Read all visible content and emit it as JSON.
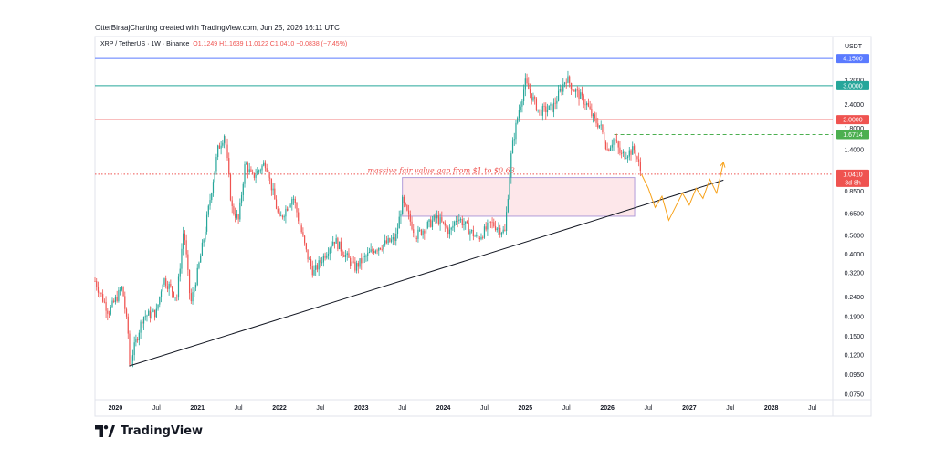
{
  "header": {
    "text": "OtterBiraajCharting created with TradingView.com, Jun 25, 2026 16:11 UTC"
  },
  "symbol": {
    "name": "XRP / TetherUS · 1W · Binance",
    "open": "O1.1249",
    "high": "H1.1639",
    "low": "L1.0122",
    "close": "C1.0410",
    "change": "−0.0838 (−7.45%)"
  },
  "currency": "USDT",
  "brand": {
    "name": "TradingView"
  },
  "colors": {
    "up": "#26a69a",
    "down": "#ef5350",
    "blue": "#5b7bff",
    "teal": "#26a69a",
    "red": "#ef5350",
    "green": "#4caf50",
    "trend": "#131722",
    "projection": "#f7a21b",
    "fvg_fill": "#fde7ea",
    "fvg_border": "#b19cd9"
  },
  "chart_data": {
    "type": "candlestick",
    "y_scale": "log",
    "ylim": [
      0.07,
      5.0
    ],
    "x_tick_labels": [
      "2020",
      "Jul",
      "2021",
      "Jul",
      "2022",
      "Jul",
      "2023",
      "Jul",
      "2024",
      "Jul",
      "2025",
      "Jul",
      "2026",
      "Jul",
      "2027",
      "Jul",
      "2028",
      "Jul"
    ],
    "y_tick_labels": [
      "3.2000",
      "2.4000",
      "1.8000",
      "1.4000",
      "1.0000",
      "0.8500",
      "0.6500",
      "0.5000",
      "0.4000",
      "0.3200",
      "0.2400",
      "0.1900",
      "0.1500",
      "0.1200",
      "0.0950",
      "0.0750"
    ],
    "y_ticks": [
      3.2,
      2.4,
      1.8,
      1.4,
      1.0,
      0.85,
      0.65,
      0.5,
      0.4,
      0.32,
      0.24,
      0.19,
      0.15,
      0.12,
      0.095,
      0.075
    ],
    "levels": [
      {
        "price": 4.15,
        "label": "4.1500",
        "color": "blue"
      },
      {
        "price": 3.0,
        "label": "3.0000",
        "color": "teal"
      },
      {
        "price": 2.0,
        "label": "2.0000",
        "color": "red"
      },
      {
        "price": 1.6714,
        "label": "1.6714",
        "color": "green",
        "style": "dashed"
      },
      {
        "price": 1.041,
        "label": "1.0410",
        "sublabel": "3d 8h",
        "color": "red",
        "style": "dotted",
        "current": true
      }
    ],
    "annotation": {
      "text": "massive fair value gap from $1 to $0.63",
      "top": 1.0,
      "bottom": 0.63
    },
    "trendline": {
      "from": [
        "2020-03",
        0.105
      ],
      "to": [
        "2027-06",
        0.97
      ]
    },
    "weekly_close_path": [
      [
        "2019-10",
        0.29
      ],
      [
        "2019-12",
        0.2
      ],
      [
        "2020-02",
        0.27
      ],
      [
        "2020-03",
        0.14
      ],
      [
        "2020-03",
        0.105
      ],
      [
        "2020-05",
        0.19
      ],
      [
        "2020-07",
        0.2
      ],
      [
        "2020-08",
        0.3
      ],
      [
        "2020-10",
        0.24
      ],
      [
        "2020-11",
        0.55
      ],
      [
        "2020-12",
        0.22
      ],
      [
        "2021-01",
        0.32
      ],
      [
        "2021-02",
        0.5
      ],
      [
        "2021-04",
        1.4
      ],
      [
        "2021-05",
        1.7
      ],
      [
        "2021-06",
        0.7
      ],
      [
        "2021-07",
        0.6
      ],
      [
        "2021-08",
        1.2
      ],
      [
        "2021-09",
        1.0
      ],
      [
        "2021-11",
        1.2
      ],
      [
        "2021-12",
        0.85
      ],
      [
        "2022-01",
        0.6
      ],
      [
        "2022-03",
        0.8
      ],
      [
        "2022-05",
        0.4
      ],
      [
        "2022-06",
        0.32
      ],
      [
        "2022-09",
        0.48
      ],
      [
        "2022-12",
        0.34
      ],
      [
        "2023-03",
        0.43
      ],
      [
        "2023-06",
        0.48
      ],
      [
        "2023-07",
        0.75
      ],
      [
        "2023-09",
        0.5
      ],
      [
        "2023-12",
        0.62
      ],
      [
        "2024-02",
        0.52
      ],
      [
        "2024-03",
        0.63
      ],
      [
        "2024-06",
        0.48
      ],
      [
        "2024-08",
        0.58
      ],
      [
        "2024-10",
        0.52
      ],
      [
        "2024-11",
        1.4
      ],
      [
        "2024-12",
        2.2
      ],
      [
        "2025-01",
        3.1
      ],
      [
        "2025-03",
        2.2
      ],
      [
        "2025-05",
        2.3
      ],
      [
        "2025-07",
        3.3
      ],
      [
        "2025-08",
        2.9
      ],
      [
        "2025-10",
        2.4
      ],
      [
        "2025-11",
        2.0
      ],
      [
        "2025-12",
        1.85
      ],
      [
        "2026-01",
        1.4
      ],
      [
        "2026-02",
        1.6
      ],
      [
        "2026-03",
        1.3
      ],
      [
        "2026-05",
        1.4
      ],
      [
        "2026-06",
        1.04
      ]
    ],
    "projection": [
      [
        "2026-06",
        1.04
      ],
      [
        "2026-07",
        0.88
      ],
      [
        "2026-08",
        0.7
      ],
      [
        "2026-09",
        0.8
      ],
      [
        "2026-10",
        0.6
      ],
      [
        "2026-12",
        0.83
      ],
      [
        "2027-01",
        0.72
      ],
      [
        "2027-02",
        0.88
      ],
      [
        "2027-03",
        0.78
      ],
      [
        "2027-04",
        0.98
      ],
      [
        "2027-05",
        0.83
      ],
      [
        "2027-06",
        1.2
      ]
    ]
  }
}
